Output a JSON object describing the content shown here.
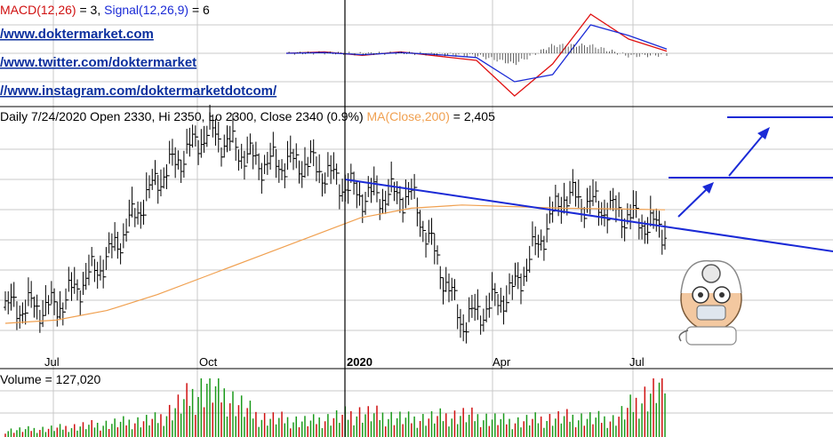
{
  "links": [
    "/www.doktermarket.com",
    "/www.twitter.com/doktermarket",
    "//www.instagram.com/doktermarketdotcom/"
  ],
  "macd_panel": {
    "label_prefix": "MACD(12,26)",
    "label_value": " = 3, ",
    "signal_label": "Signal(12,26,9)",
    "signal_value": " = 6"
  },
  "price_panel": {
    "header": "Daily 7/24/2020 Open 2330, Hi 2350, Lo 2300, Close 2340 (0.9%) ",
    "ma_label": "MA(Close,200)",
    "ma_value": " = 2,405"
  },
  "volume_panel": {
    "header": "Volume = 127,020"
  },
  "colors": {
    "price_bars": "#000000",
    "ma200": "#f0a050",
    "trendline": "#1a2ad6",
    "macd_line": "#e01010",
    "signal_line": "#1a2ad6",
    "volume_up": "#1a9a1a",
    "volume_down": "#d01010",
    "grid": "#c8c8c8"
  },
  "chart_data": [
    {
      "type": "line",
      "panel": "macd",
      "x": [
        "2019-06",
        "2019-08",
        "2019-10",
        "2019-12",
        "2020-01",
        "2020-02",
        "2020-03",
        "2020-04",
        "2020-05",
        "2020-06",
        "2020-07"
      ],
      "series": [
        {
          "name": "MACD(12,26)",
          "values": [
            0,
            2,
            -3,
            2,
            -4,
            -10,
            -60,
            -15,
            55,
            20,
            3
          ]
        },
        {
          "name": "Signal(12,26,9)",
          "values": [
            0,
            1,
            -2,
            1,
            -2,
            -6,
            -40,
            -30,
            40,
            25,
            6
          ]
        }
      ]
    },
    {
      "type": "line",
      "panel": "price",
      "x": [
        "2019-06",
        "2019-07",
        "2019-08",
        "2019-09",
        "2019-10",
        "2019-11",
        "2019-12",
        "2020-01",
        "2020-02",
        "2020-03",
        "2020-04",
        "2020-05",
        "2020-06",
        "2020-07"
      ],
      "x_tick_labels": [
        "Jul",
        "Oct",
        "2020",
        "Apr",
        "Jul"
      ],
      "series": [
        {
          "name": "Price",
          "values": [
            2100,
            2100,
            2250,
            2500,
            2650,
            2550,
            2550,
            2450,
            2450,
            2050,
            2150,
            2450,
            2400,
            2340
          ]
        },
        {
          "name": "MA(Close,200)",
          "values": [
            2050,
            2060,
            2090,
            2140,
            2200,
            2260,
            2320,
            2380,
            2410,
            2420,
            2415,
            2410,
            2408,
            2405
          ]
        }
      ],
      "trendline": {
        "from": [
          "2020-01",
          2580
        ],
        "to": [
          "2020-07",
          2460
        ]
      }
    },
    {
      "type": "bar",
      "panel": "volume",
      "categories": [
        "2019-06",
        "2019-07",
        "2019-08",
        "2019-09",
        "2019-10",
        "2019-11",
        "2019-12",
        "2020-01",
        "2020-02",
        "2020-03",
        "2020-04",
        "2020-05",
        "2020-06",
        "2020-07"
      ],
      "values": [
        15000,
        20000,
        30000,
        40000,
        120000,
        45000,
        35000,
        55000,
        40000,
        50000,
        35000,
        45000,
        40000,
        127020
      ]
    }
  ]
}
